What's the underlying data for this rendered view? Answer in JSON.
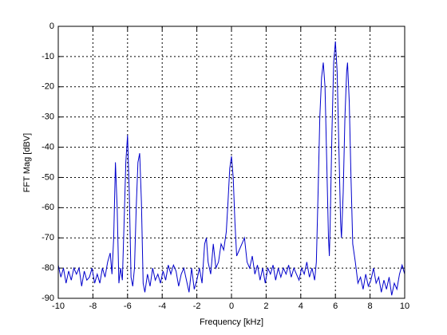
{
  "chart_data": {
    "type": "line",
    "xlabel": "Frequency [kHz]",
    "ylabel": "FFT Mag [dBV]",
    "xlim": [
      -10,
      10
    ],
    "ylim": [
      -90,
      0
    ],
    "xticks": [
      -10,
      -8,
      -6,
      -4,
      -2,
      0,
      2,
      4,
      6,
      8,
      10
    ],
    "yticks": [
      -90,
      -80,
      -70,
      -60,
      -50,
      -40,
      -30,
      -20,
      -10,
      0
    ],
    "grid": true,
    "series": [
      {
        "color": "#0000cc",
        "x": [
          -10,
          -9.85,
          -9.7,
          -9.55,
          -9.4,
          -9.25,
          -9.1,
          -8.95,
          -8.8,
          -8.65,
          -8.5,
          -8.35,
          -8.2,
          -8.05,
          -7.9,
          -7.75,
          -7.6,
          -7.45,
          -7.3,
          -7.15,
          -7.0,
          -6.9,
          -6.8,
          -6.7,
          -6.6,
          -6.5,
          -6.4,
          -6.3,
          -6.2,
          -6.1,
          -6.0,
          -5.9,
          -5.8,
          -5.7,
          -5.6,
          -5.5,
          -5.4,
          -5.3,
          -5.2,
          -5.1,
          -5.0,
          -4.85,
          -4.7,
          -4.55,
          -4.4,
          -4.25,
          -4.1,
          -3.95,
          -3.8,
          -3.65,
          -3.5,
          -3.35,
          -3.2,
          -3.05,
          -2.9,
          -2.75,
          -2.6,
          -2.45,
          -2.3,
          -2.15,
          -2.0,
          -1.85,
          -1.7,
          -1.55,
          -1.45,
          -1.35,
          -1.2,
          -1.05,
          -0.9,
          -0.75,
          -0.6,
          -0.45,
          -0.3,
          -0.2,
          -0.1,
          0,
          0.1,
          0.2,
          0.3,
          0.45,
          0.6,
          0.75,
          0.9,
          1.05,
          1.2,
          1.35,
          1.5,
          1.65,
          1.8,
          1.95,
          2.1,
          2.25,
          2.4,
          2.55,
          2.7,
          2.85,
          3.0,
          3.15,
          3.3,
          3.45,
          3.6,
          3.75,
          3.9,
          4.05,
          4.2,
          4.35,
          4.5,
          4.65,
          4.8,
          4.9,
          5.0,
          5.1,
          5.2,
          5.3,
          5.4,
          5.5,
          5.6,
          5.65,
          5.7,
          5.8,
          5.9,
          6.0,
          6.1,
          6.2,
          6.3,
          6.35,
          6.45,
          6.55,
          6.65,
          6.7,
          6.8,
          6.9,
          7.0,
          7.15,
          7.3,
          7.45,
          7.6,
          7.75,
          7.9,
          8.05,
          8.2,
          8.35,
          8.5,
          8.65,
          8.8,
          8.95,
          9.1,
          9.25,
          9.4,
          9.55,
          9.7,
          9.85,
          10
        ],
        "values": [
          -79,
          -83,
          -80,
          -85,
          -81,
          -84,
          -80,
          -82,
          -80,
          -86,
          -81,
          -84,
          -83,
          -80,
          -85,
          -82,
          -85,
          -80,
          -83,
          -78,
          -75,
          -82,
          -70,
          -45,
          -60,
          -85,
          -80,
          -84,
          -65,
          -45,
          -36,
          -55,
          -83,
          -86,
          -80,
          -60,
          -45,
          -42,
          -58,
          -85,
          -88,
          -82,
          -86,
          -80,
          -84,
          -82,
          -85,
          -81,
          -84,
          -79,
          -82,
          -79,
          -81,
          -86,
          -82,
          -80,
          -84,
          -88,
          -80,
          -87,
          -84,
          -80,
          -85,
          -72,
          -70,
          -78,
          -82,
          -72,
          -80,
          -78,
          -72,
          -74,
          -68,
          -58,
          -47,
          -43,
          -50,
          -65,
          -76,
          -74,
          -72,
          -70,
          -78,
          -80,
          -76,
          -82,
          -79,
          -84,
          -80,
          -85,
          -80,
          -82,
          -79,
          -84,
          -80,
          -83,
          -80,
          -82,
          -79,
          -83,
          -80,
          -82,
          -84,
          -80,
          -82,
          -78,
          -83,
          -80,
          -84,
          -78,
          -55,
          -30,
          -17,
          -12,
          -20,
          -45,
          -70,
          -76,
          -65,
          -35,
          -12,
          -5,
          -15,
          -40,
          -65,
          -70,
          -55,
          -30,
          -15,
          -12,
          -25,
          -50,
          -72,
          -78,
          -85,
          -83,
          -87,
          -82,
          -86,
          -84,
          -80,
          -85,
          -83,
          -88,
          -84,
          -87,
          -83,
          -89,
          -85,
          -87,
          -82,
          -79,
          -82
        ]
      }
    ]
  }
}
